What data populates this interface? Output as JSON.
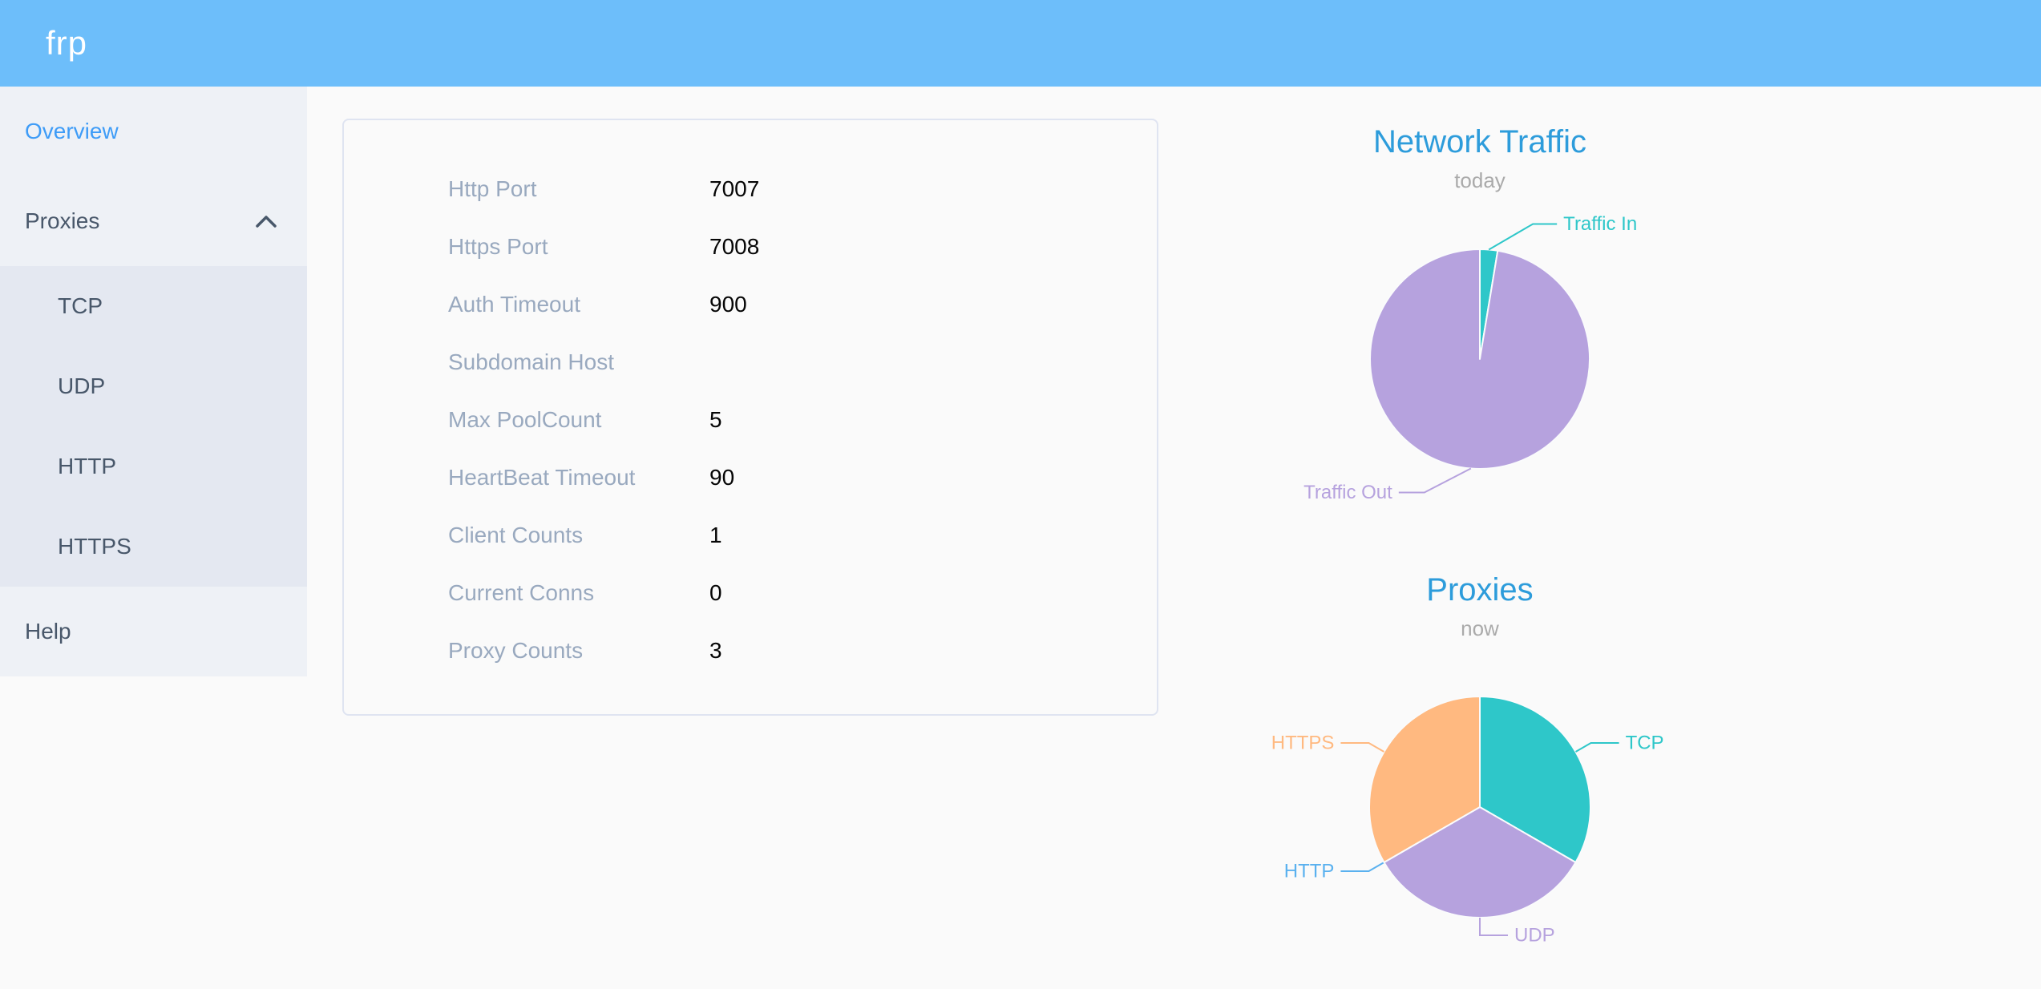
{
  "app": {
    "logo_text": "frp"
  },
  "colors": {
    "header_bg": "#6dbefa",
    "page_bg": "#fafafa",
    "sidebar_bg": "#eef1f6",
    "submenu_bg": "#e4e8f1",
    "menu_text": "#48576a",
    "menu_active": "#3e9cf7",
    "card_border": "#dfe4f1",
    "label_text": "#99a9bf",
    "value_text": "#060606",
    "chart_title": "#2d9cdb",
    "chart_subtitle": "#aaaaaa"
  },
  "sidebar": {
    "items": [
      {
        "label": "Overview",
        "active": true
      },
      {
        "label": "Proxies",
        "expanded": true
      },
      {
        "label": "Help"
      }
    ],
    "proxies_submenu": [
      "TCP",
      "UDP",
      "HTTP",
      "HTTPS"
    ]
  },
  "server_info": {
    "rows": [
      {
        "label": "Http Port",
        "value": "7007"
      },
      {
        "label": "Https Port",
        "value": "7008"
      },
      {
        "label": "Auth Timeout",
        "value": "900"
      },
      {
        "label": "Subdomain Host",
        "value": ""
      },
      {
        "label": "Max PoolCount",
        "value": "5"
      },
      {
        "label": "HeartBeat Timeout",
        "value": "90"
      },
      {
        "label": "Client Counts",
        "value": "1"
      },
      {
        "label": "Current Conns",
        "value": "0"
      },
      {
        "label": "Proxy Counts",
        "value": "3"
      }
    ]
  },
  "chart_data": [
    {
      "type": "pie",
      "title": "Network Traffic",
      "subtitle": "today",
      "legend_position": "none",
      "value_unit": "percent (estimated from slice angles)",
      "slices": [
        {
          "name": "Traffic In",
          "value": 2.6,
          "color": "#2ec7c9"
        },
        {
          "name": "Traffic Out",
          "value": 97.4,
          "color": "#b6a2de"
        }
      ]
    },
    {
      "type": "pie",
      "title": "Proxies",
      "subtitle": "now",
      "legend_position": "none",
      "value_unit": "count",
      "slices": [
        {
          "name": "TCP",
          "value": 1,
          "color": "#2ec7c9"
        },
        {
          "name": "UDP",
          "value": 1,
          "color": "#b6a2de"
        },
        {
          "name": "HTTP",
          "value": 0,
          "color": "#5ab1ef"
        },
        {
          "name": "HTTPS",
          "value": 1,
          "color": "#ffb980"
        }
      ]
    }
  ]
}
